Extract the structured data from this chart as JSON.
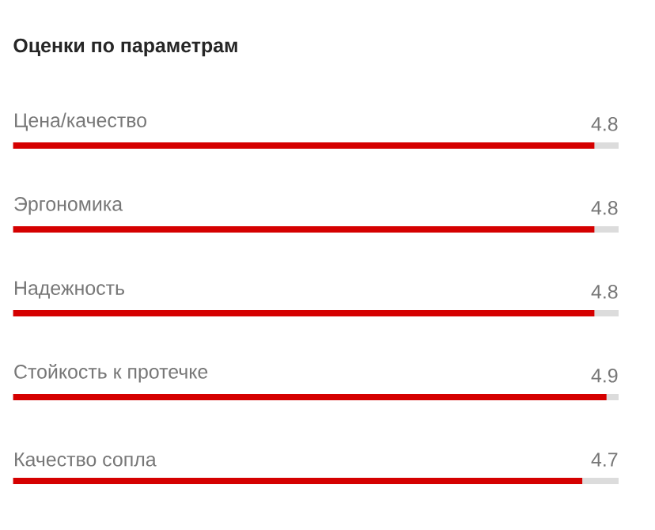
{
  "chart_data": {
    "type": "bar",
    "orientation": "horizontal",
    "title": "Оценки по параметрам",
    "categories": [
      "Цена/качество",
      "Эргономика",
      "Надежность",
      "Стойкость к протечке",
      "Качество сопла"
    ],
    "values": [
      4.8,
      4.8,
      4.8,
      4.9,
      4.7
    ],
    "color": "#d50000",
    "xlim": [
      0,
      5
    ],
    "data_labels": true
  }
}
